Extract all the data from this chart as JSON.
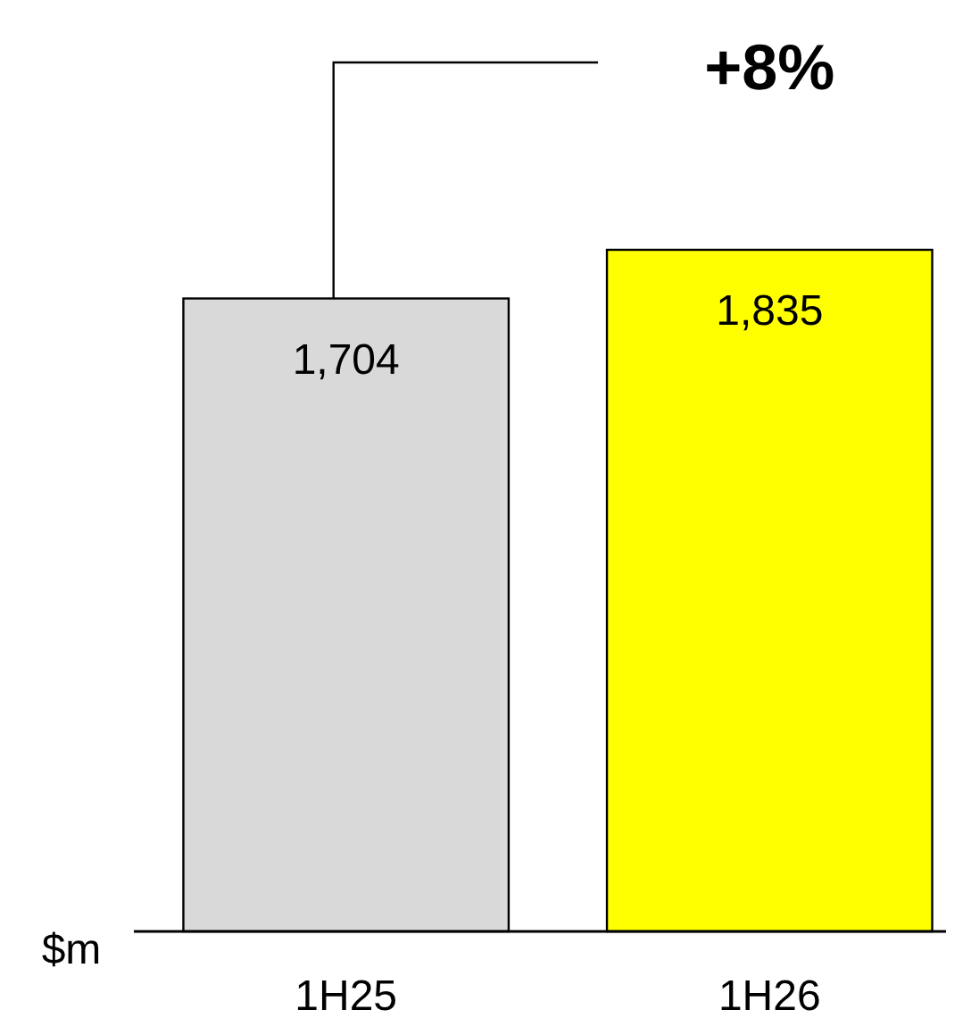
{
  "chart_data": {
    "type": "bar",
    "categories": [
      "1H25",
      "1H26"
    ],
    "values": [
      1704,
      1835
    ],
    "colors": [
      "#d9d9d9",
      "#ffff00"
    ],
    "ylabel": "$m",
    "value_labels": [
      "1,704",
      "1,835"
    ],
    "tick_labels": "x",
    "annotations": [
      "+8%"
    ]
  }
}
